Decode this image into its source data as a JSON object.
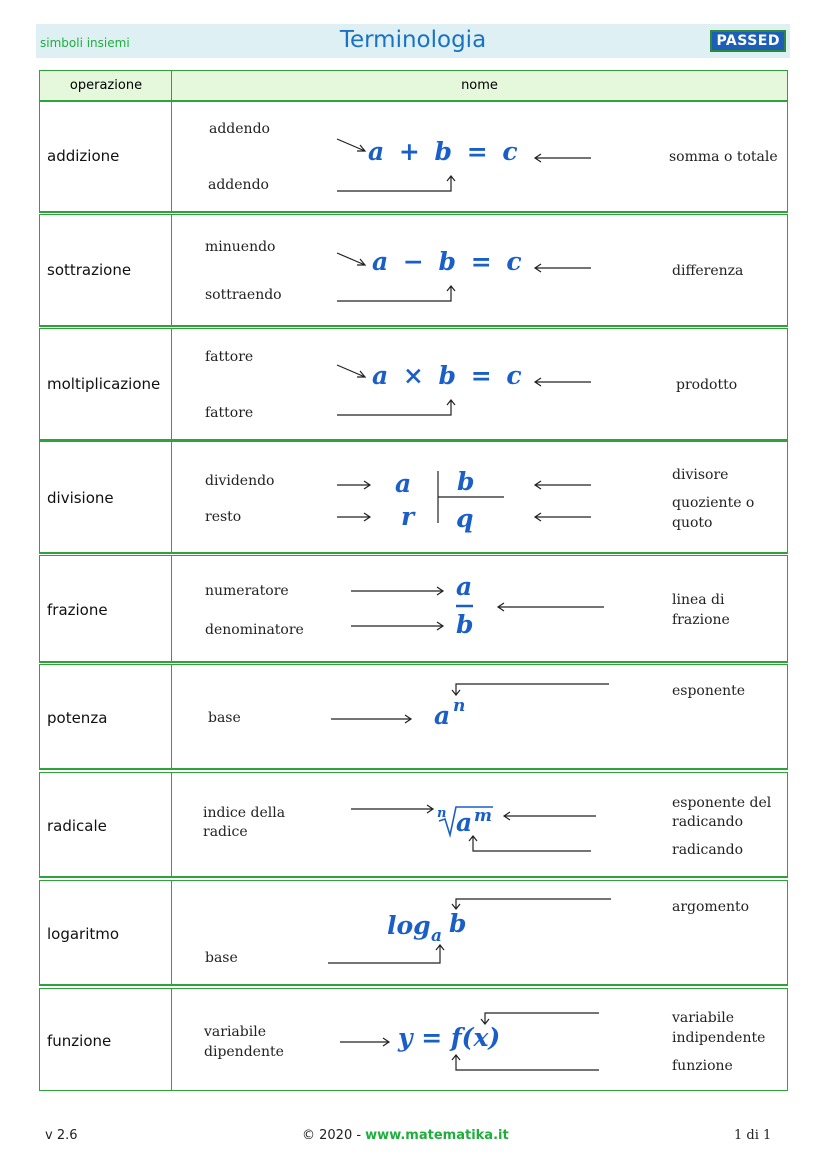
{
  "header": {
    "left": "simboli insiemi",
    "title": "Terminologia",
    "badge": "PASSED"
  },
  "table": {
    "col1": "operazione",
    "col2": "nome",
    "rows": [
      {
        "op": "addizione",
        "top": "addendo",
        "bottom": "addendo",
        "formula": "a + b = c",
        "right": "somma o totale"
      },
      {
        "op": "sottrazione",
        "top": "minuendo",
        "bottom": "sottraendo",
        "formula": "a − b = c",
        "right": "differenza"
      },
      {
        "op": "moltiplicazione",
        "top": "fattore",
        "bottom": "fattore",
        "formula": "a × b = c",
        "right": "prodotto"
      },
      {
        "op": "divisione",
        "top": "dividendo",
        "bottom": "resto",
        "a": "a",
        "b": "b",
        "r": "r",
        "q": "q",
        "right1": "divisore",
        "right2a": "quoziente o",
        "right2b": "quoto"
      },
      {
        "op": "frazione",
        "top": "numeratore",
        "bottom": "denominatore",
        "num": "a",
        "den": "b",
        "right_a": "linea di",
        "right_b": "frazione"
      },
      {
        "op": "potenza",
        "left": "base",
        "base": "a",
        "exp": "n",
        "right": "esponente"
      },
      {
        "op": "radicale",
        "left_a": "indice della",
        "left_b": "radice",
        "index": "n",
        "radicand": "a",
        "exp": "m",
        "right1a": "esponente del",
        "right1b": "radicando",
        "right2": "radicando"
      },
      {
        "op": "logaritmo",
        "log": "log",
        "sub": "a",
        "arg": "b",
        "left": "base",
        "right": "argomento"
      },
      {
        "op": "funzione",
        "left_a": "variabile",
        "left_b": "dipendente",
        "formula": "y = f(x)",
        "right1a": "variabile",
        "right1b": "indipendente",
        "right2": "funzione"
      }
    ]
  },
  "footer": {
    "version": "v 2.6",
    "copyright": "© 2020 - ",
    "site": "www.matematika.it",
    "page": "1 di 1"
  },
  "colors": {
    "green": "#2ea33a",
    "blue": "#1a5fc8",
    "title": "#1a73c2"
  }
}
